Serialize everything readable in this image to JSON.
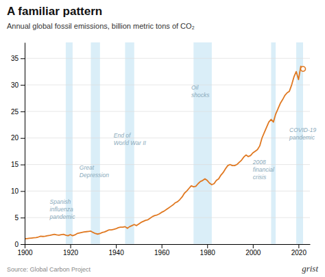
{
  "chart_data": {
    "type": "line",
    "title": "A familiar pattern",
    "subtitle": "Annual global fossil emissions, billion metric tons of CO₂",
    "source": "Source: Global Carbon Project",
    "branding": "grist",
    "color": "#E07820",
    "grid": true,
    "xlim": [
      1900,
      2025
    ],
    "ylim": [
      0,
      38
    ],
    "xticks": [
      1900,
      1920,
      1940,
      1960,
      1980,
      2000,
      2020
    ],
    "yticks": [
      0,
      5,
      10,
      15,
      20,
      25,
      30,
      35
    ],
    "shaded_regions": [
      {
        "xmin": 1918,
        "xmax": 1921,
        "label": "Spanish\ninfluenza\npandemic",
        "label_x": 1911,
        "label_y": 8.5
      },
      {
        "xmin": 1929,
        "xmax": 1933,
        "label": "Great\nDepression",
        "label_x": 1924,
        "label_y": 15
      },
      {
        "xmin": 1944,
        "xmax": 1948,
        "label": "End of\nWorld War II",
        "label_x": 1939,
        "label_y": 21
      },
      {
        "xmin": 1974,
        "xmax": 1982,
        "label": "Oil\nshocks",
        "label_x": 1973,
        "label_y": 30
      },
      {
        "xmin": 2008,
        "xmax": 2010,
        "label": "2008\nfinancial\ncrisis",
        "label_x": 2000,
        "label_y": 16
      },
      {
        "xmin": 2019,
        "xmax": 2022,
        "label": "COVID-19\npandemic",
        "label_x": 2016,
        "label_y": 22
      }
    ],
    "x": [
      1900,
      1901,
      1902,
      1903,
      1904,
      1905,
      1906,
      1907,
      1908,
      1909,
      1910,
      1911,
      1912,
      1913,
      1914,
      1915,
      1916,
      1917,
      1918,
      1919,
      1920,
      1921,
      1922,
      1923,
      1924,
      1925,
      1926,
      1927,
      1928,
      1929,
      1930,
      1931,
      1932,
      1933,
      1934,
      1935,
      1936,
      1937,
      1938,
      1939,
      1940,
      1941,
      1942,
      1943,
      1944,
      1945,
      1946,
      1947,
      1948,
      1949,
      1950,
      1951,
      1952,
      1953,
      1954,
      1955,
      1956,
      1957,
      1958,
      1959,
      1960,
      1961,
      1962,
      1963,
      1964,
      1965,
      1966,
      1967,
      1968,
      1969,
      1970,
      1971,
      1972,
      1973,
      1974,
      1975,
      1976,
      1977,
      1978,
      1979,
      1980,
      1981,
      1982,
      1983,
      1984,
      1985,
      1986,
      1987,
      1988,
      1989,
      1990,
      1991,
      1992,
      1993,
      1994,
      1995,
      1996,
      1997,
      1998,
      1999,
      2000,
      2001,
      2002,
      2003,
      2004,
      2005,
      2006,
      2007,
      2008,
      2009,
      2010,
      2011,
      2012,
      2013,
      2014,
      2015,
      2016,
      2017,
      2018,
      2019,
      2020,
      2021,
      2022
    ],
    "values": [
      1.0,
      1.05,
      1.1,
      1.15,
      1.2,
      1.25,
      1.35,
      1.5,
      1.45,
      1.5,
      1.6,
      1.65,
      1.75,
      1.85,
      1.75,
      1.7,
      1.8,
      1.85,
      1.7,
      1.6,
      1.8,
      1.6,
      1.75,
      2.0,
      2.1,
      2.2,
      2.3,
      2.35,
      2.4,
      2.45,
      2.2,
      2.0,
      1.9,
      2.0,
      2.2,
      2.3,
      2.5,
      2.7,
      2.7,
      2.8,
      2.9,
      3.1,
      3.2,
      3.2,
      3.3,
      3.0,
      3.3,
      3.5,
      3.7,
      3.5,
      3.8,
      4.1,
      4.3,
      4.5,
      4.6,
      4.9,
      5.2,
      5.4,
      5.5,
      5.7,
      6.0,
      6.2,
      6.5,
      6.8,
      7.1,
      7.4,
      7.8,
      8.0,
      8.4,
      8.9,
      9.6,
      10.0,
      10.5,
      11.0,
      10.8,
      10.9,
      11.4,
      11.8,
      12.0,
      12.3,
      12.0,
      11.5,
      11.2,
      11.4,
      12.0,
      12.3,
      13.0,
      13.5,
      14.2,
      14.8,
      15.0,
      14.8,
      14.8,
      15.0,
      15.4,
      15.8,
      16.4,
      16.8,
      16.5,
      16.7,
      17.2,
      17.5,
      17.8,
      18.5,
      20.0,
      21.0,
      22.0,
      23.0,
      23.5,
      23.0,
      24.5,
      25.5,
      26.5,
      27.2,
      28.0,
      28.5,
      28.8,
      30.0,
      31.5,
      32.5,
      31.0,
      33.5,
      33.0
    ],
    "end_marker": {
      "x": 2022,
      "value": 33.0
    }
  }
}
